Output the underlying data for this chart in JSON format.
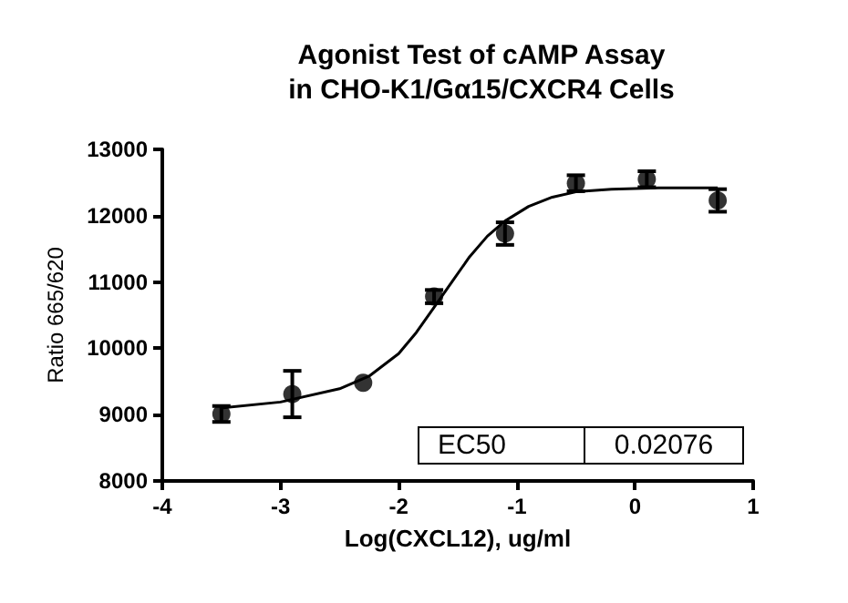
{
  "chart_data": {
    "type": "scatter",
    "title": "Agonist Test of cAMP Assay\nin CHO-K1/Gα15/CXCR4 Cells",
    "xlabel": "Log(CXCL12), ug/ml",
    "ylabel": "Ratio 665/620",
    "series": [
      {
        "color": "#000000",
        "marker": "circle",
        "x": [
          -3.5,
          -2.9,
          -2.3,
          -1.7,
          -1.1,
          -0.5,
          0.1,
          0.7
        ],
        "values": [
          9010,
          9310,
          9480,
          10780,
          11730,
          12490,
          12550,
          12230
        ],
        "errors": [
          120,
          350,
          null,
          100,
          170,
          120,
          120,
          170
        ]
      },
      {
        "type": "line",
        "color": "#000000",
        "marker": "none",
        "line_style": "solid",
        "x": [
          -3.5,
          -3.0,
          -2.5,
          -2.25,
          -2.0,
          -1.85,
          -1.7,
          -1.55,
          -1.4,
          -1.25,
          -1.1,
          -0.9,
          -0.7,
          -0.5,
          -0.2,
          0.2,
          0.7
        ],
        "values": [
          9100,
          9190,
          9390,
          9580,
          9920,
          10240,
          10620,
          11000,
          11380,
          11690,
          11920,
          12140,
          12280,
          12360,
          12400,
          12420,
          12420
        ]
      }
    ],
    "xlim": [
      -4,
      1
    ],
    "xticks": [
      -4,
      -3,
      -2,
      -1,
      0,
      1
    ],
    "ylim": [
      8000,
      13000
    ],
    "yticks": [
      8000,
      9000,
      10000,
      11000,
      12000,
      13000
    ],
    "grid": false,
    "annotations": [
      "EC50",
      "0.02076"
    ]
  }
}
